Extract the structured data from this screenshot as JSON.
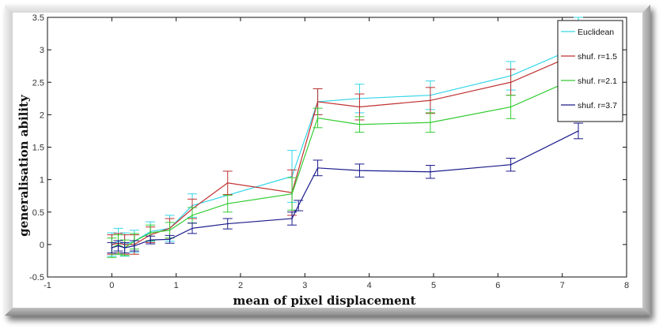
{
  "chart_data": {
    "type": "line",
    "xlabel": "mean of pixel displacement",
    "ylabel": "generalisation ability",
    "xlim": [
      -1,
      8
    ],
    "ylim": [
      -0.5,
      3.5
    ],
    "xticks": [
      -1,
      0,
      1,
      2,
      3,
      4,
      5,
      6,
      7,
      8
    ],
    "yticks": [
      -0.5,
      0,
      0.5,
      1,
      1.5,
      2,
      2.5,
      3,
      3.5
    ],
    "xtick_labels": [
      "-1",
      "0",
      "1",
      "2",
      "3",
      "4",
      "5",
      "6",
      "7",
      "8"
    ],
    "ytick_labels": [
      "-0.5",
      "0",
      "0.5",
      "1",
      "1.5",
      "2",
      "2.5",
      "3",
      "3.5"
    ],
    "grid": false,
    "legend_position": "top-right",
    "series": [
      {
        "name": "Euclidean",
        "color": "#33d6e8",
        "x": [
          0,
          0.1,
          0.2,
          0.35,
          0.6,
          0.9,
          1.25,
          2.8,
          3.2,
          3.85,
          4.95,
          6.2,
          7.25
        ],
        "y": [
          0.0,
          0.05,
          0.0,
          0.05,
          0.2,
          0.25,
          0.6,
          1.05,
          2.2,
          2.25,
          2.3,
          2.6,
          3.05
        ],
        "err": [
          0.18,
          0.2,
          0.18,
          0.17,
          0.15,
          0.2,
          0.18,
          0.4,
          0.2,
          0.22,
          0.22,
          0.22,
          0.45
        ]
      },
      {
        "name": "shuf. r=1.5",
        "color": "#c03030",
        "x": [
          0,
          0.1,
          0.2,
          0.35,
          0.6,
          0.9,
          1.25,
          1.8,
          2.8,
          3.2,
          3.85,
          4.95,
          6.2,
          7.25
        ],
        "y": [
          0.0,
          0.02,
          0.0,
          0.0,
          0.15,
          0.25,
          0.55,
          0.95,
          0.8,
          2.2,
          2.12,
          2.22,
          2.5,
          2.95
        ],
        "err": [
          0.15,
          0.15,
          0.15,
          0.15,
          0.12,
          0.15,
          0.15,
          0.18,
          0.35,
          0.2,
          0.2,
          0.2,
          0.2,
          0.25
        ]
      },
      {
        "name": "shuf. r=2.1",
        "color": "#33cc33",
        "x": [
          0,
          0.1,
          0.2,
          0.35,
          0.6,
          0.9,
          1.25,
          1.8,
          2.8,
          3.2,
          3.85,
          4.95,
          6.2,
          7.25
        ],
        "y": [
          -0.05,
          0.0,
          -0.05,
          0.05,
          0.18,
          0.22,
          0.45,
          0.63,
          0.78,
          1.95,
          1.85,
          1.88,
          2.12,
          2.58
        ],
        "err": [
          0.15,
          0.15,
          0.12,
          0.12,
          0.12,
          0.12,
          0.12,
          0.13,
          0.25,
          0.15,
          0.12,
          0.15,
          0.18,
          0.2
        ]
      },
      {
        "name": "shuf. r=3.7",
        "color": "#1a1a8c",
        "x": [
          0,
          0.1,
          0.2,
          0.35,
          0.6,
          0.9,
          1.25,
          1.8,
          2.8,
          2.9,
          3.2,
          3.85,
          4.95,
          6.2,
          7.25
        ],
        "y": [
          -0.05,
          -0.02,
          -0.05,
          -0.02,
          0.07,
          0.08,
          0.25,
          0.32,
          0.4,
          0.6,
          1.18,
          1.14,
          1.12,
          1.23,
          1.75
        ],
        "err": [
          0.08,
          0.08,
          0.08,
          0.08,
          0.06,
          0.06,
          0.08,
          0.08,
          0.1,
          0.08,
          0.12,
          0.1,
          0.1,
          0.1,
          0.12
        ]
      }
    ]
  }
}
